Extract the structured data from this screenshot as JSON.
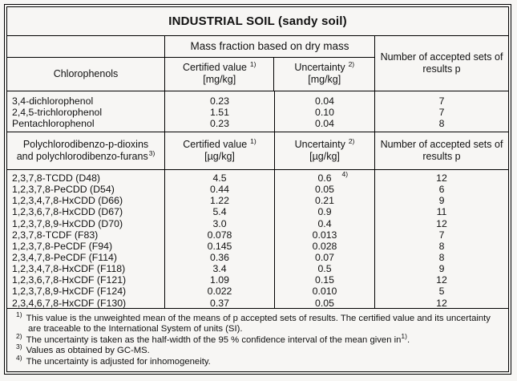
{
  "title": "INDUSTRIAL SOIL (sandy soil)",
  "header": {
    "mass_fraction": "Mass fraction based on dry mass",
    "accepted_sets": "Number of accepted sets of results p"
  },
  "sections": [
    {
      "name": "Chlorophenols",
      "certified": {
        "label": "Certified value",
        "sup": "1)",
        "unit": "[mg/kg]"
      },
      "uncertainty": {
        "label": "Uncertainty",
        "sup": "2)",
        "unit": "[mg/kg]"
      },
      "rows": [
        {
          "name": "3,4-dichlorophenol",
          "certified": "0.23",
          "uncertainty": "0.04",
          "p": "7"
        },
        {
          "name": "2,4,5-trichlorophenol",
          "certified": "1.51",
          "uncertainty": "0.10",
          "p": "7"
        },
        {
          "name": "Pentachlorophenol",
          "certified": "0.23",
          "uncertainty": "0.04",
          "p": "8"
        }
      ]
    },
    {
      "name_line1": "Polychlorodibenzo-p-dioxins",
      "name_line2": "and polychlorodibenzo-furans",
      "name_sup": "3)",
      "certified": {
        "label": "Certified value",
        "sup": "1)",
        "unit": "[µg/kg]"
      },
      "uncertainty": {
        "label": "Uncertainty",
        "sup": "2)",
        "unit": "[µg/kg]"
      },
      "accepted_sets": "Number of accepted sets of results p",
      "rows": [
        {
          "name": "2,3,7,8-TCDD (D48)",
          "certified": "4.5",
          "uncertainty": "0.6",
          "note": "4)",
          "p": "12"
        },
        {
          "name": "1,2,3,7,8-PeCDD (D54)",
          "certified": "0.44",
          "uncertainty": "0.05",
          "p": "6"
        },
        {
          "name": "1,2,3,4,7,8-HxCDD (D66)",
          "certified": "1.22",
          "uncertainty": "0.21",
          "p": "9"
        },
        {
          "name": "1,2,3,6,7,8-HxCDD (D67)",
          "certified": "5.4",
          "uncertainty": "0.9",
          "p": "11"
        },
        {
          "name": "1,2,3,7,8,9-HxCDD (D70)",
          "certified": "3.0",
          "uncertainty": "0.4",
          "p": "12"
        },
        {
          "name": "2,3,7,8-TCDF (F83)",
          "certified": "0.078",
          "uncertainty": "0.013",
          "p": "7"
        },
        {
          "name": "1,2,3,7,8-PeCDF (F94)",
          "certified": "0.145",
          "uncertainty": "0.028",
          "p": "8"
        },
        {
          "name": "2,3,4,7,8-PeCDF (F114)",
          "certified": "0.36",
          "uncertainty": "0.07",
          "p": "8"
        },
        {
          "name": "1,2,3,4,7,8-HxCDF (F118)",
          "certified": "3.4",
          "uncertainty": "0.5",
          "p": "9"
        },
        {
          "name": "1,2,3,6,7,8-HxCDF (F121)",
          "certified": "1.09",
          "uncertainty": "0.15",
          "p": "12"
        },
        {
          "name": "1,2,3,7,8,9-HxCDF (F124)",
          "certified": "0.022",
          "uncertainty": "0.010",
          "p": "5"
        },
        {
          "name": "2,3,4,6,7,8-HxCDF (F130)",
          "certified": "0.37",
          "uncertainty": "0.05",
          "p": "12"
        }
      ]
    }
  ],
  "footnotes": [
    {
      "sup": "1)",
      "text": "This value is the unweighted mean of the means of p accepted sets of results. The certified value and its uncertainty are traceable to the International System of units (SI)."
    },
    {
      "sup": "2)",
      "text": "The uncertainty is taken as the half-width of the 95 % confidence interval of the mean given in",
      "end_sup": "1)",
      "tail": "."
    },
    {
      "sup": "3)",
      "text": "Values as obtained by GC-MS."
    },
    {
      "sup": "4)",
      "text": "The uncertainty is adjusted for inhomogeneity."
    }
  ]
}
